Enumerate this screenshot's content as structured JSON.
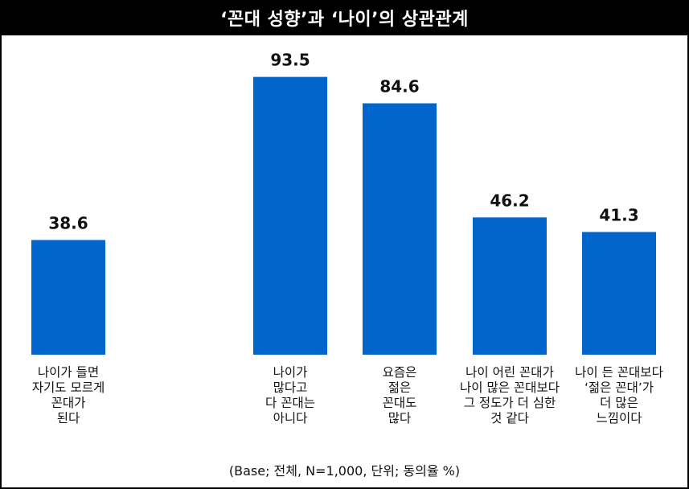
{
  "title": "‘꼰대 성향’과 ‘나이’의 상관관계",
  "footnote": "(Base; 전체, N=1,000, 단위; 동의율 %)",
  "colors": {
    "bar": "#0066CC",
    "background": "#FFFFFF",
    "frame": "#000000"
  },
  "chart_data": {
    "type": "bar",
    "categories": [
      [
        "나이가 들면",
        "자기도 모르게",
        "꼰대가",
        "된다"
      ],
      [
        "나이가",
        "많다고",
        "다 꼰대는",
        "아니다"
      ],
      [
        "요즘은",
        "젊은",
        "꼰대도",
        "많다"
      ],
      [
        "나이 어린 꼰대가",
        "나이 많은 꼰대보다",
        "그 정도가 더 심한",
        "것 같다"
      ],
      [
        "나이 든 꼰대보다",
        "‘젊은 꼰대’가",
        "더 많은",
        "느낌이다"
      ]
    ],
    "values": [
      38.6,
      93.5,
      84.6,
      46.2,
      41.3
    ],
    "value_labels": [
      "38.6",
      "93.5",
      "84.6",
      "46.2",
      "41.3"
    ],
    "ylim": [
      0,
      100
    ],
    "grid": false,
    "title": "‘꼰대 성향’과 ‘나이’의 상관관계",
    "xlabel": "",
    "ylabel": ""
  }
}
